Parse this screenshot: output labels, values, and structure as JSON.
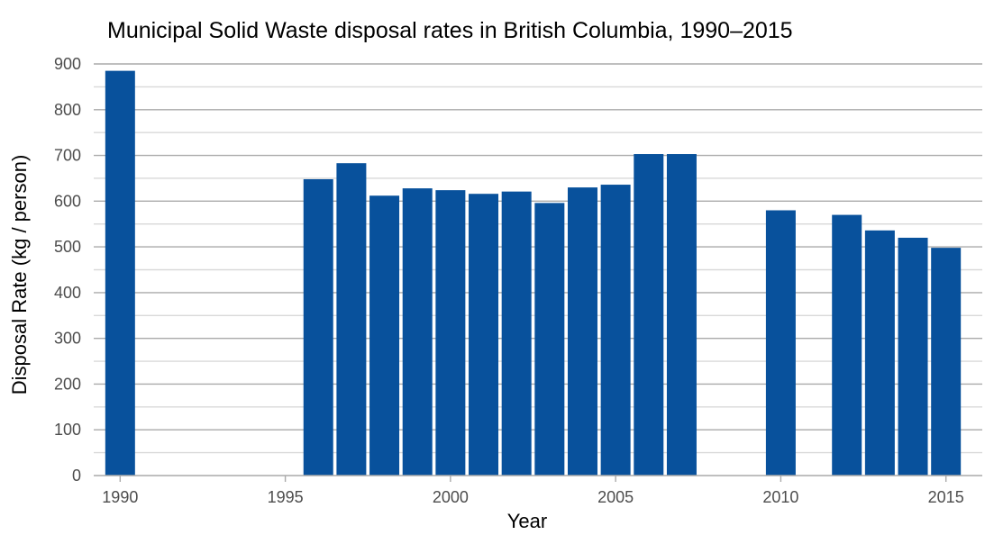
{
  "chart_data": {
    "type": "bar",
    "title": "Municipal Solid Waste disposal rates in British Columbia, 1990–2015",
    "xlabel": "Year",
    "ylabel": "Disposal Rate (kg / person)",
    "x": [
      1990,
      1996,
      1997,
      1998,
      1999,
      2000,
      2001,
      2002,
      2003,
      2004,
      2005,
      2006,
      2007,
      2010,
      2012,
      2013,
      2014,
      2015
    ],
    "values": [
      885,
      648,
      683,
      612,
      628,
      624,
      616,
      621,
      596,
      630,
      636,
      703,
      703,
      580,
      570,
      536,
      520,
      498
    ],
    "xlim": [
      1989.2,
      2016.1
    ],
    "ylim": [
      0,
      900
    ],
    "x_ticks": [
      "1990",
      "1995",
      "2000",
      "2005",
      "2010",
      "2015"
    ],
    "y_ticks": [
      "0",
      "100",
      "200",
      "300",
      "400",
      "500",
      "600",
      "700",
      "800",
      "900"
    ],
    "bar_color": "#08519c",
    "grid": true,
    "legend": "none"
  }
}
